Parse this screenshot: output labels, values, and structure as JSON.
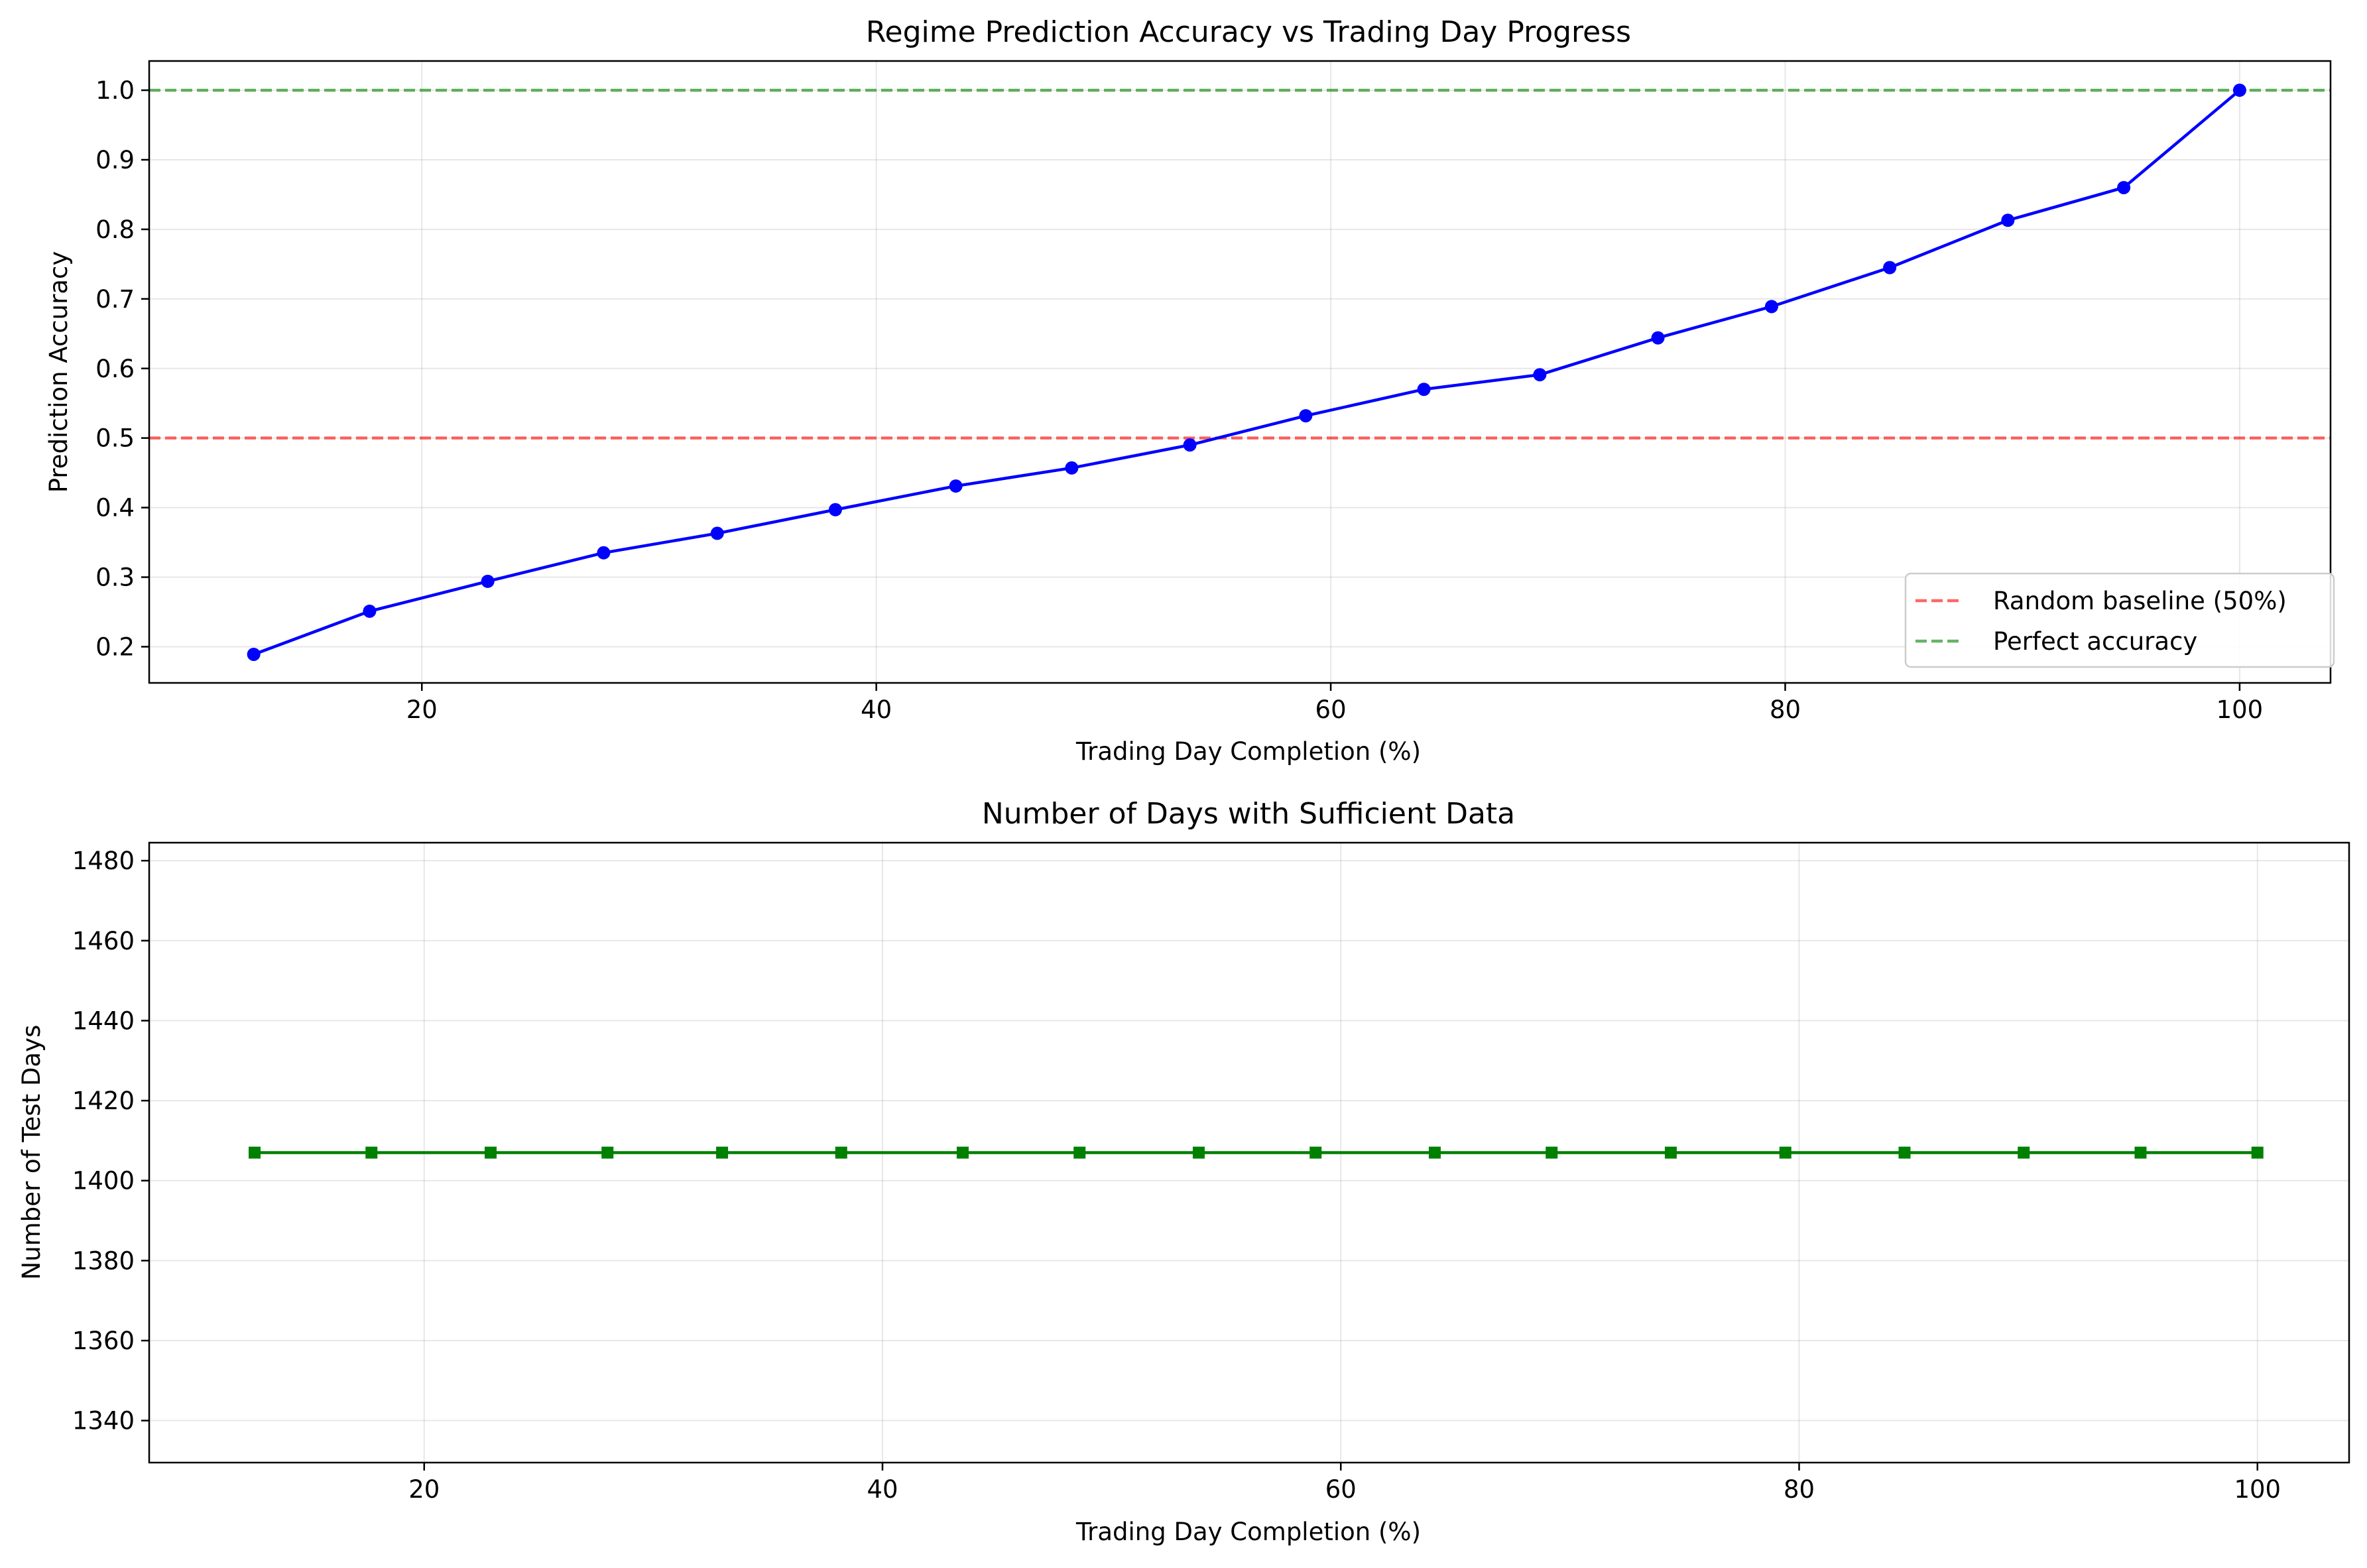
{
  "chart_data": [
    {
      "type": "line",
      "title": "Regime Prediction Accuracy vs Trading Day Progress",
      "xlabel": "Trading Day Completion (%)",
      "ylabel": "Prediction Accuracy",
      "xlim": [
        8.0,
        104.0
      ],
      "ylim": [
        0.148,
        1.042
      ],
      "xticks": [
        20,
        40,
        60,
        80,
        100
      ],
      "xtick_labels": [
        "20",
        "40",
        "60",
        "80",
        "100"
      ],
      "yticks": [
        0.2,
        0.3,
        0.4,
        0.5,
        0.6,
        0.7,
        0.8,
        0.9,
        1.0
      ],
      "ytick_labels": [
        "0.2",
        "0.3",
        "0.4",
        "0.5",
        "0.6",
        "0.7",
        "0.8",
        "0.9",
        "1.0"
      ],
      "grid": true,
      "legend_position": "lower-right",
      "series": [
        {
          "color": "#0000ff",
          "marker": "circle",
          "x": [
            12.6,
            17.7,
            22.9,
            28.0,
            33.0,
            38.2,
            43.5,
            48.6,
            53.8,
            58.9,
            64.1,
            69.2,
            74.4,
            79.4,
            84.6,
            89.8,
            94.9,
            100.0
          ],
          "y": [
            0.189,
            0.251,
            0.294,
            0.335,
            0.363,
            0.397,
            0.431,
            0.457,
            0.49,
            0.532,
            0.57,
            0.591,
            0.644,
            0.689,
            0.745,
            0.813,
            0.86,
            1.0
          ]
        }
      ],
      "reference_lines": [
        {
          "name": "Random baseline (50%)",
          "y": 0.5,
          "color": "#ff0000",
          "style": "dashed"
        },
        {
          "name": "Perfect accuracy",
          "y": 1.0,
          "color": "#008000",
          "style": "dashed"
        }
      ]
    },
    {
      "type": "line",
      "title": "Number of Days with Sufficient Data",
      "xlabel": "Trading Day Completion (%)",
      "ylabel": "Number of Test Days",
      "xlim": [
        8.0,
        104.0
      ],
      "ylim": [
        1329.5,
        1484.5
      ],
      "xticks": [
        20,
        40,
        60,
        80,
        100
      ],
      "xtick_labels": [
        "20",
        "40",
        "60",
        "80",
        "100"
      ],
      "yticks": [
        1340,
        1360,
        1380,
        1400,
        1420,
        1440,
        1460,
        1480
      ],
      "ytick_labels": [
        "1340",
        "1360",
        "1380",
        "1400",
        "1420",
        "1440",
        "1460",
        "1480"
      ],
      "grid": true,
      "series": [
        {
          "color": "#008000",
          "marker": "square",
          "x": [
            12.6,
            17.7,
            22.9,
            28.0,
            33.0,
            38.2,
            43.5,
            48.6,
            53.8,
            58.9,
            64.1,
            69.2,
            74.4,
            79.4,
            84.6,
            89.8,
            94.9,
            100.0
          ],
          "y": [
            1407,
            1407,
            1407,
            1407,
            1407,
            1407,
            1407,
            1407,
            1407,
            1407,
            1407,
            1407,
            1407,
            1407,
            1407,
            1407,
            1407,
            1407
          ]
        }
      ]
    }
  ]
}
